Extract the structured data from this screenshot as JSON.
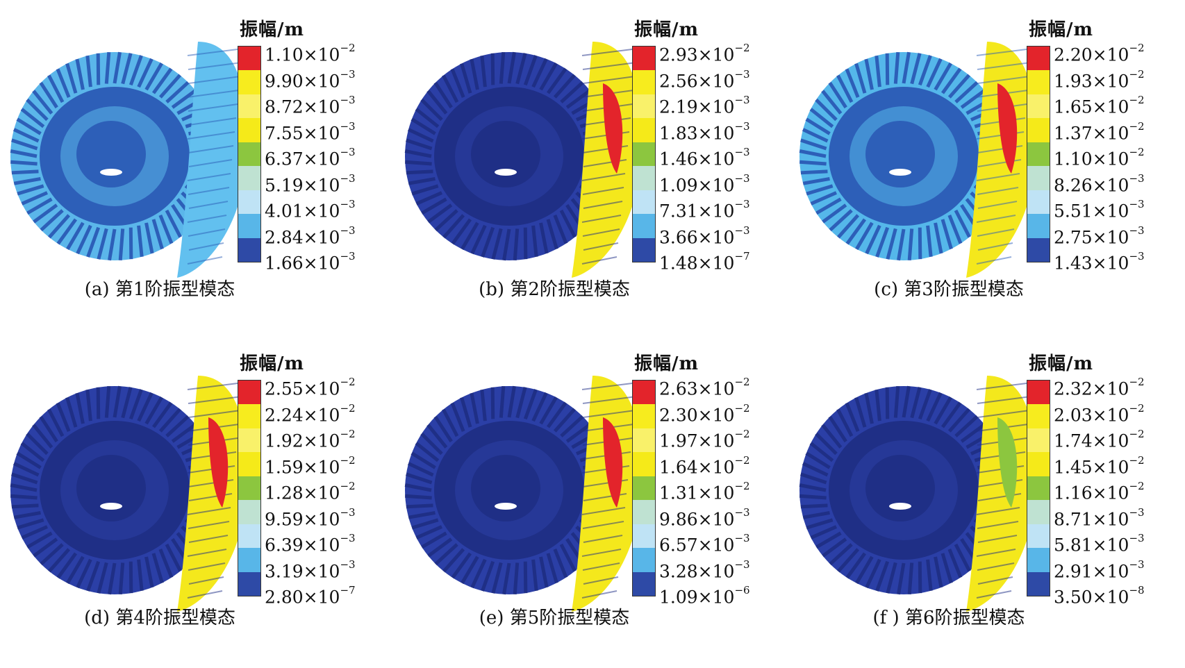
{
  "legend_colors": [
    "#2e4aa6",
    "#58b6e8",
    "#bfe3f5",
    "#bfe2d2",
    "#8cc63f",
    "#f5ea19",
    "#f9f16a",
    "#f7ec1e",
    "#e3242b"
  ],
  "panels": [
    {
      "caption": "(a) 第1阶振型模态",
      "legend_title": "振幅/m",
      "ticks": [
        {
          "mant": "1.10×10",
          "exp": "−2"
        },
        {
          "mant": "9.90×10",
          "exp": "−3"
        },
        {
          "mant": "8.72×10",
          "exp": "−3"
        },
        {
          "mant": "7.55×10",
          "exp": "−3"
        },
        {
          "mant": "6.37×10",
          "exp": "−3"
        },
        {
          "mant": "5.19×10",
          "exp": "−3"
        },
        {
          "mant": "4.01×10",
          "exp": "−3"
        },
        {
          "mant": "2.84×10",
          "exp": "−3"
        },
        {
          "mant": "1.66×10",
          "exp": "−3"
        }
      ]
    },
    {
      "caption": "(b) 第2阶振型模态",
      "legend_title": "振幅/m",
      "ticks": [
        {
          "mant": "2.93×10",
          "exp": "−2"
        },
        {
          "mant": "2.56×10",
          "exp": "−3"
        },
        {
          "mant": "2.19×10",
          "exp": "−3"
        },
        {
          "mant": "1.83×10",
          "exp": "−3"
        },
        {
          "mant": "1.46×10",
          "exp": "−3"
        },
        {
          "mant": "1.09×10",
          "exp": "−3"
        },
        {
          "mant": "7.31×10",
          "exp": "−3"
        },
        {
          "mant": "3.66×10",
          "exp": "−3"
        },
        {
          "mant": "1.48×10",
          "exp": "−7"
        }
      ]
    },
    {
      "caption": "(c) 第3阶振型模态",
      "legend_title": "振幅/m",
      "ticks": [
        {
          "mant": "2.20×10",
          "exp": "−2"
        },
        {
          "mant": "1.93×10",
          "exp": "−2"
        },
        {
          "mant": "1.65×10",
          "exp": "−2"
        },
        {
          "mant": "1.37×10",
          "exp": "−2"
        },
        {
          "mant": "1.10×10",
          "exp": "−2"
        },
        {
          "mant": "8.26×10",
          "exp": "−3"
        },
        {
          "mant": "5.51×10",
          "exp": "−3"
        },
        {
          "mant": "2.75×10",
          "exp": "−3"
        },
        {
          "mant": "1.43×10",
          "exp": "−3"
        }
      ]
    },
    {
      "caption": "(d) 第4阶振型模态",
      "legend_title": "振幅/m",
      "ticks": [
        {
          "mant": "2.55×10",
          "exp": "−2"
        },
        {
          "mant": "2.24×10",
          "exp": "−2"
        },
        {
          "mant": "1.92×10",
          "exp": "−2"
        },
        {
          "mant": "1.59×10",
          "exp": "−2"
        },
        {
          "mant": "1.28×10",
          "exp": "−2"
        },
        {
          "mant": "9.59×10",
          "exp": "−3"
        },
        {
          "mant": "6.39×10",
          "exp": "−3"
        },
        {
          "mant": "3.19×10",
          "exp": "−3"
        },
        {
          "mant": "2.80×10",
          "exp": "−7"
        }
      ]
    },
    {
      "caption": "(e) 第5阶振型模态",
      "legend_title": "振幅/m",
      "ticks": [
        {
          "mant": "2.63×10",
          "exp": "−2"
        },
        {
          "mant": "2.30×10",
          "exp": "−2"
        },
        {
          "mant": "1.97×10",
          "exp": "−2"
        },
        {
          "mant": "1.64×10",
          "exp": "−2"
        },
        {
          "mant": "1.31×10",
          "exp": "−2"
        },
        {
          "mant": "9.86×10",
          "exp": "−3"
        },
        {
          "mant": "6.57×10",
          "exp": "−3"
        },
        {
          "mant": "3.28×10",
          "exp": "−3"
        },
        {
          "mant": "1.09×10",
          "exp": "−6"
        }
      ]
    },
    {
      "caption": "(f ) 第6阶振型模态",
      "legend_title": "振幅/m",
      "ticks": [
        {
          "mant": "2.32×10",
          "exp": "−2"
        },
        {
          "mant": "2.03×10",
          "exp": "−2"
        },
        {
          "mant": "1.74×10",
          "exp": "−2"
        },
        {
          "mant": "1.45×10",
          "exp": "−2"
        },
        {
          "mant": "1.16×10",
          "exp": "−2"
        },
        {
          "mant": "8.71×10",
          "exp": "−3"
        },
        {
          "mant": "5.81×10",
          "exp": "−3"
        },
        {
          "mant": "2.91×10",
          "exp": "−3"
        },
        {
          "mant": "3.50×10",
          "exp": "−8"
        }
      ]
    }
  ]
}
